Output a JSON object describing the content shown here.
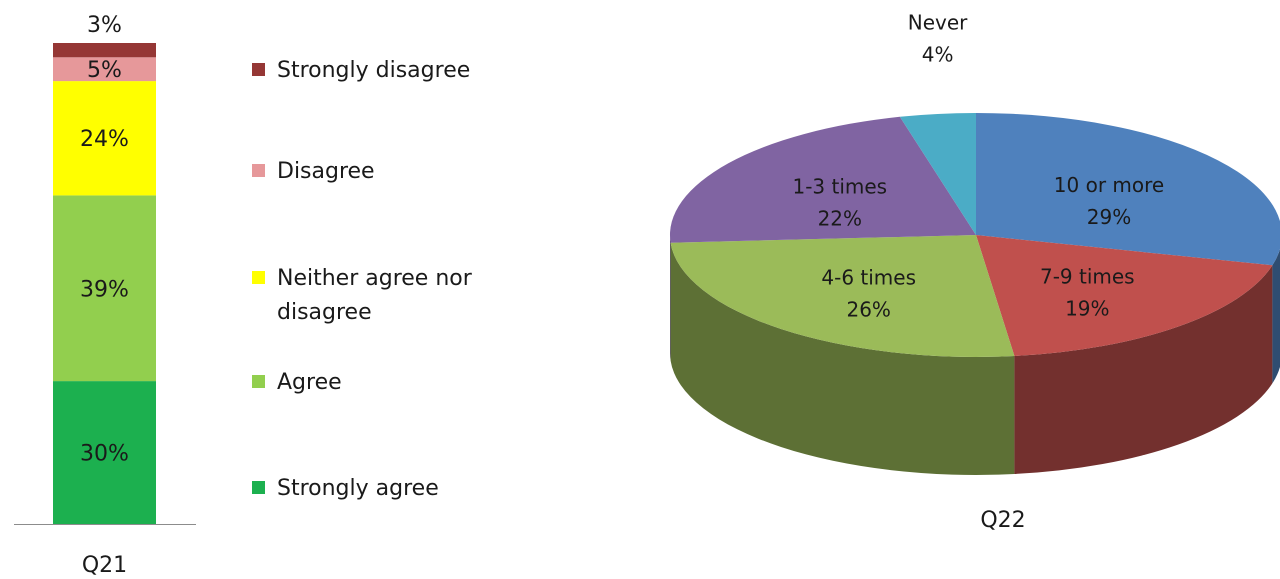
{
  "chart_data": [
    {
      "type": "bar",
      "subtype": "stacked-100",
      "categories": [
        "Q21"
      ],
      "series": [
        {
          "name": "Strongly agree",
          "values": [
            30
          ],
          "label": "30%",
          "color": "#1cb04f"
        },
        {
          "name": "Agree",
          "values": [
            39
          ],
          "label": "39%",
          "color": "#92cf4e"
        },
        {
          "name": "Neither agree nor disagree",
          "values": [
            24
          ],
          "label": "24%",
          "color": "#ffff00"
        },
        {
          "name": "Disagree",
          "values": [
            5
          ],
          "label": "5%",
          "color": "#e6989a"
        },
        {
          "name": "Strongly disagree",
          "values": [
            3
          ],
          "label": "3%",
          "color": "#953735"
        }
      ],
      "legend_position": "right",
      "grid": false
    },
    {
      "type": "pie",
      "style": "3d",
      "title": "Q22",
      "slices": [
        {
          "label": "10 or more",
          "value": 29,
          "text": "29%",
          "color": "#4f81bd"
        },
        {
          "label": "7-9 times",
          "value": 19,
          "text": "19%",
          "color": "#c0504d"
        },
        {
          "label": "4-6 times",
          "value": 26,
          "text": "26%",
          "color": "#9bbb59"
        },
        {
          "label": "1-3 times",
          "value": 22,
          "text": "22%",
          "color": "#8064a2"
        },
        {
          "label": "Never",
          "value": 4,
          "text": "4%",
          "color": "#4bacc6"
        }
      ]
    }
  ]
}
